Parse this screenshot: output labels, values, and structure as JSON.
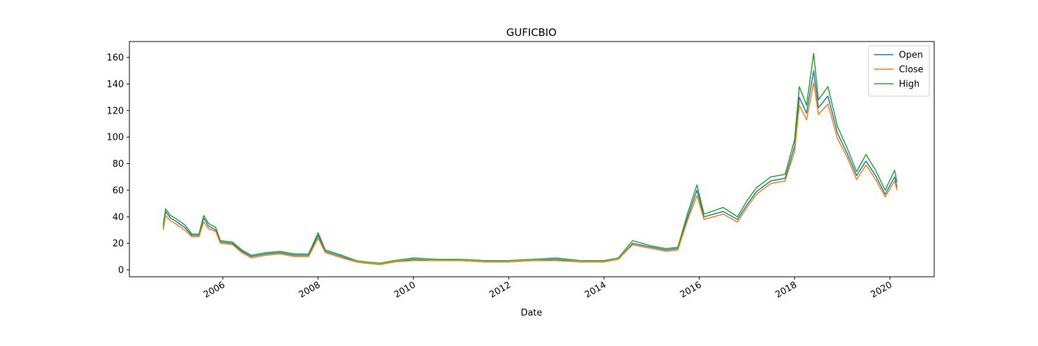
{
  "chart_data": {
    "type": "line",
    "title": "GUFICBIO",
    "xlabel": "Date",
    "x": [
      2004.75,
      2004.8,
      2004.9,
      2005.0,
      2005.2,
      2005.35,
      2005.5,
      2005.6,
      2005.7,
      2005.85,
      2005.95,
      2006.2,
      2006.4,
      2006.6,
      2006.9,
      2007.2,
      2007.5,
      2007.8,
      2008.0,
      2008.15,
      2008.5,
      2008.8,
      2009.0,
      2009.3,
      2009.6,
      2010.0,
      2010.5,
      2011.0,
      2011.5,
      2012.0,
      2012.5,
      2013.0,
      2013.5,
      2014.0,
      2014.3,
      2014.6,
      2015.0,
      2015.3,
      2015.55,
      2015.75,
      2015.95,
      2016.1,
      2016.5,
      2016.8,
      2017.0,
      2017.2,
      2017.5,
      2017.8,
      2018.0,
      2018.1,
      2018.25,
      2018.4,
      2018.5,
      2018.7,
      2018.9,
      2019.1,
      2019.3,
      2019.5,
      2019.7,
      2019.9,
      2020.1,
      2020.15
    ],
    "series": [
      {
        "name": "Open",
        "color": "#1f77b4",
        "values": [
          32,
          44,
          39,
          37,
          32,
          26,
          26,
          39,
          33,
          30,
          21,
          20,
          14,
          10,
          12,
          13,
          11,
          11,
          26,
          14,
          10,
          6,
          5,
          4,
          6,
          8,
          7,
          7,
          6,
          6,
          7,
          8,
          6,
          6,
          8,
          20,
          17,
          15,
          16,
          39,
          60,
          40,
          44,
          38,
          49,
          59,
          67,
          69,
          93,
          130,
          118,
          150,
          122,
          131,
          103,
          88,
          71,
          82,
          71,
          57,
          70,
          62
        ]
      },
      {
        "name": "Close",
        "color": "#ff7f0e",
        "values": [
          30,
          41,
          37,
          35,
          30,
          25,
          25,
          36,
          31,
          29,
          20,
          19,
          13,
          9,
          11,
          12,
          10,
          10,
          24,
          13,
          9,
          6,
          5,
          4,
          6,
          7,
          7,
          7,
          6,
          6,
          7,
          7,
          6,
          6,
          8,
          19,
          16,
          14,
          15,
          37,
          56,
          38,
          42,
          36,
          47,
          57,
          65,
          67,
          89,
          124,
          113,
          141,
          117,
          125,
          99,
          85,
          68,
          79,
          68,
          55,
          67,
          60
        ]
      },
      {
        "name": "High",
        "color": "#2ca02c",
        "values": [
          34,
          46,
          41,
          39,
          34,
          27,
          27,
          41,
          35,
          32,
          22,
          21,
          15,
          11,
          13,
          14,
          12,
          12,
          28,
          15,
          11,
          7,
          6,
          5,
          7,
          9,
          8,
          8,
          7,
          7,
          8,
          9,
          7,
          7,
          9,
          22,
          18,
          16,
          17,
          42,
          64,
          42,
          47,
          40,
          52,
          62,
          70,
          72,
          98,
          138,
          124,
          163,
          128,
          138,
          108,
          92,
          74,
          87,
          75,
          60,
          75,
          66
        ]
      }
    ],
    "xlim": [
      2004.04,
      2020.93
    ],
    "xticks": [
      2006,
      2008,
      2010,
      2012,
      2014,
      2016,
      2018,
      2020
    ],
    "ylim": [
      -5.2,
      172
    ],
    "yticks": [
      0,
      20,
      40,
      60,
      80,
      100,
      120,
      140,
      160
    ],
    "legend": "upper right"
  }
}
